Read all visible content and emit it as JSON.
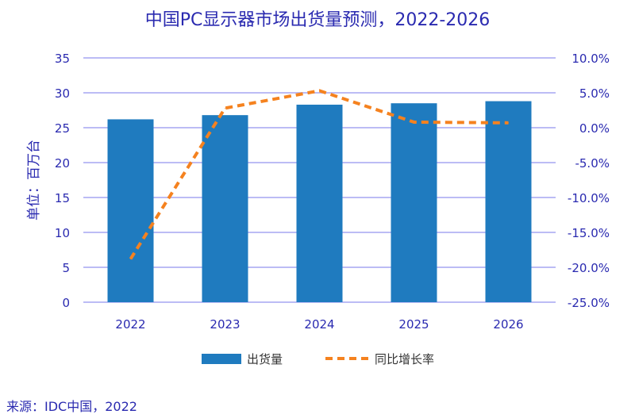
{
  "chart_data": {
    "type": "bar",
    "title": "中国PC显示器市场出货量预测，2022-2026",
    "ylabel": "单位：百万台",
    "categories": [
      "2022",
      "2023",
      "2024",
      "2025",
      "2026"
    ],
    "series": [
      {
        "name": "出货量",
        "type": "bar",
        "axis": "left",
        "color": "#1f7bbf",
        "values": [
          26.2,
          26.8,
          28.3,
          28.5,
          28.8
        ]
      },
      {
        "name": "同比增长率",
        "type": "line",
        "axis": "right",
        "color": "#f5821f",
        "dashed": true,
        "values": [
          -18.8,
          2.8,
          5.3,
          0.8,
          0.7
        ]
      }
    ],
    "ylim": [
      0,
      35
    ],
    "y_ticks": [
      "0",
      "5",
      "10",
      "15",
      "20",
      "25",
      "30",
      "35"
    ],
    "y2lim": [
      -25,
      10
    ],
    "y2_ticks": [
      "-25.0%",
      "-20.0%",
      "-15.0%",
      "-10.0%",
      "-5.0%",
      "0.0%",
      "5.0%",
      "10.0%"
    ],
    "grid": true,
    "legend": "bottom",
    "source": "来源：IDC中国，2022"
  }
}
